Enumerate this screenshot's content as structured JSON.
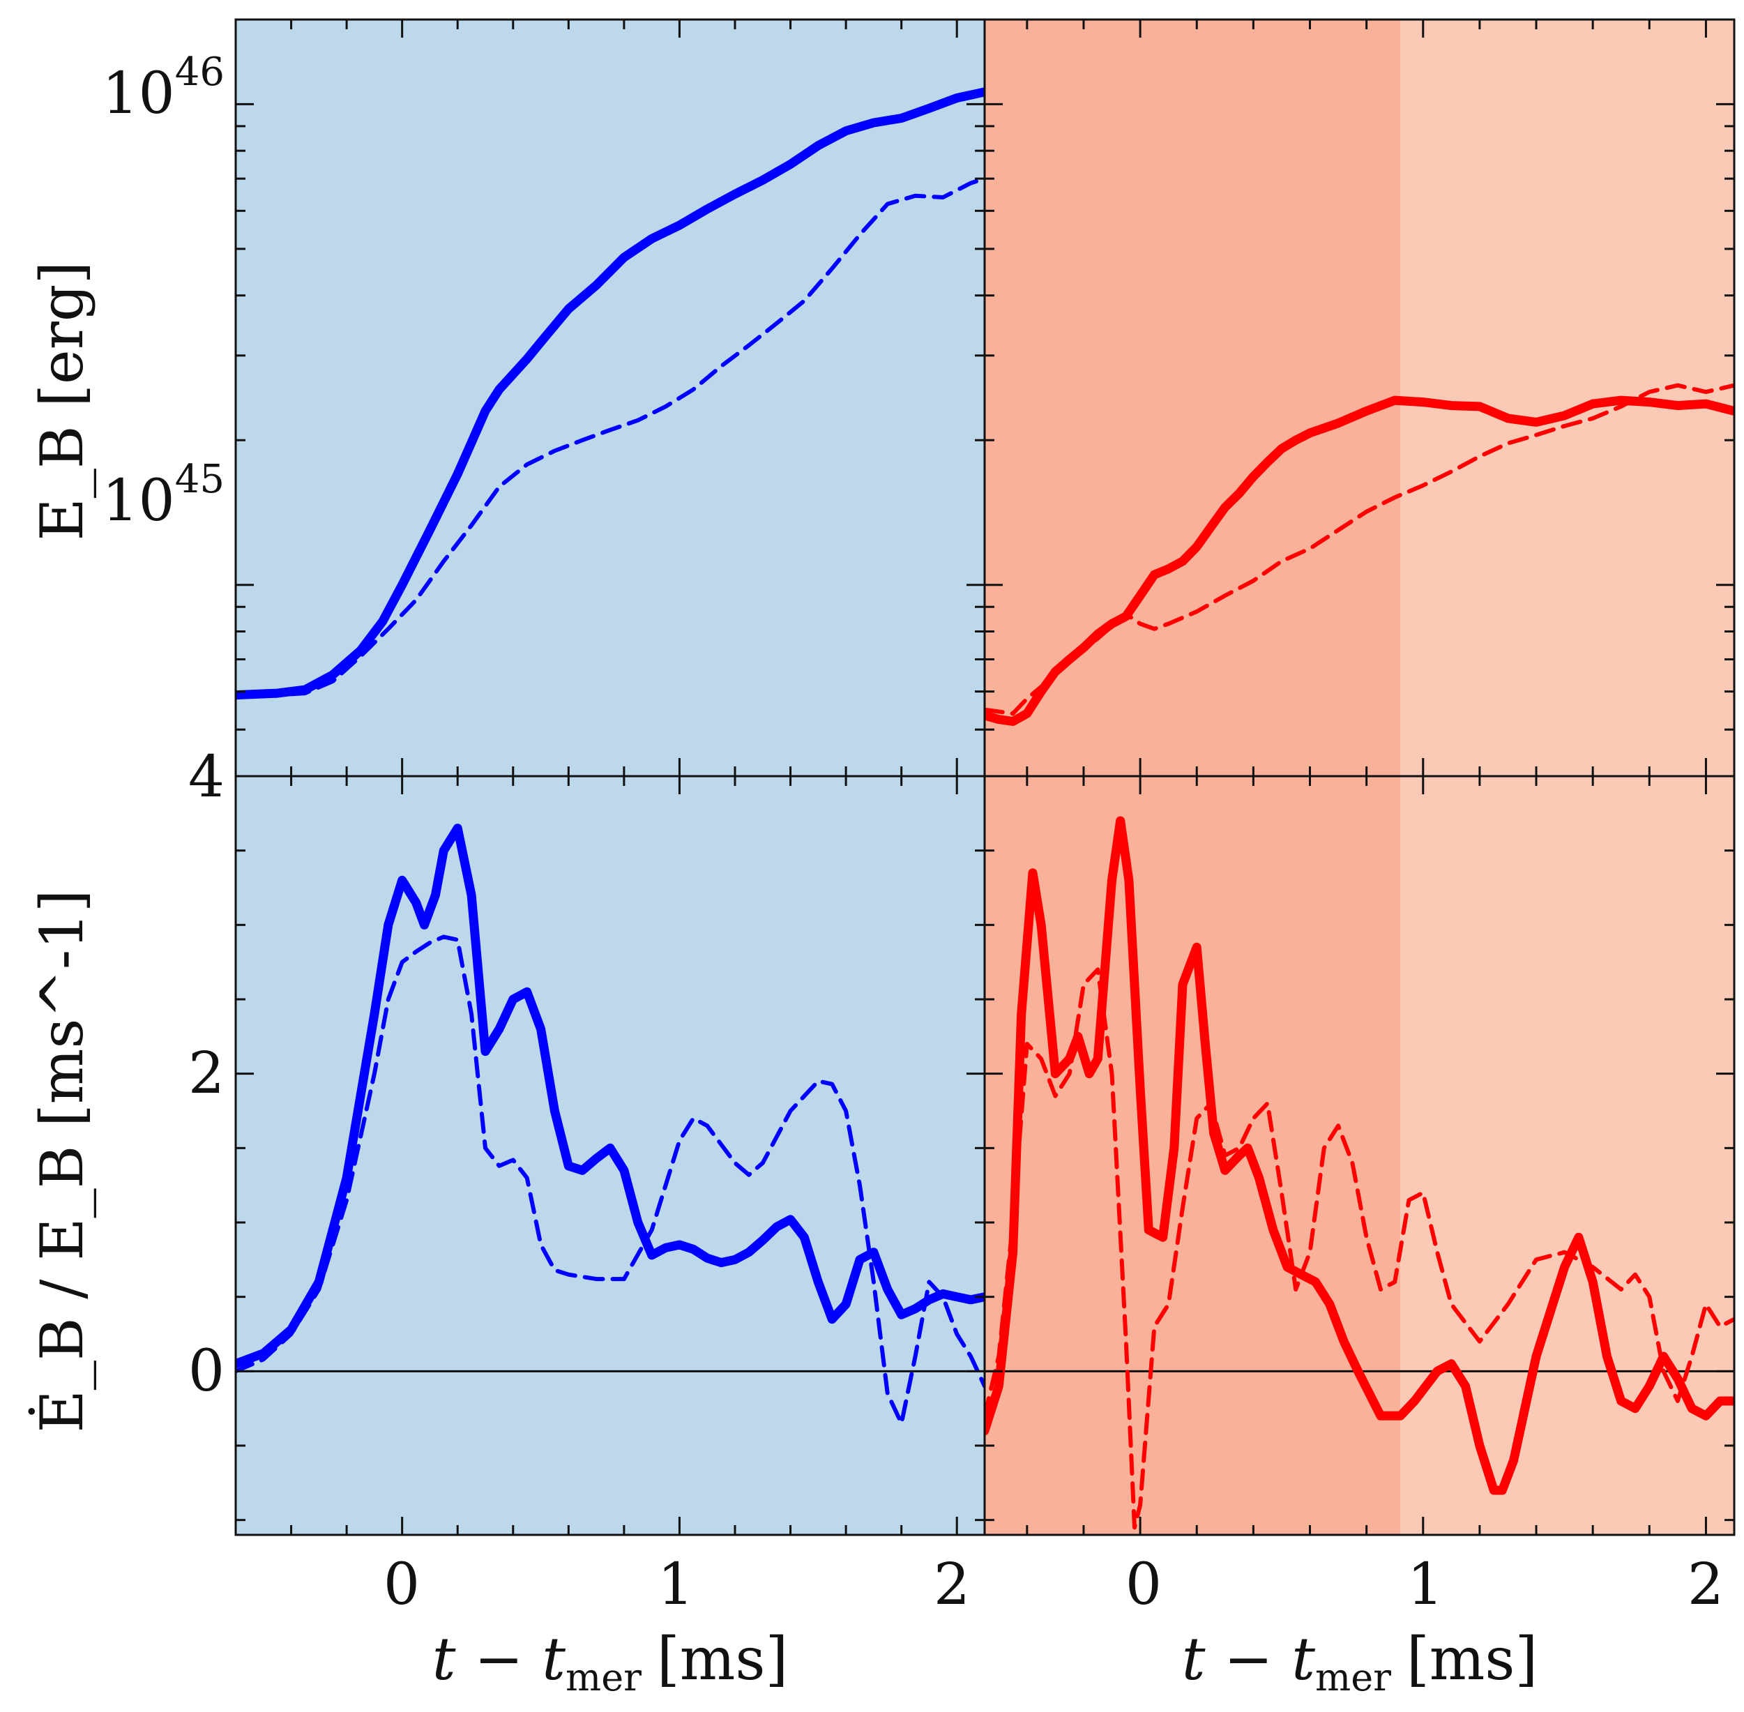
{
  "colors": {
    "blue_bg": "#bdd7eb",
    "red_bg_early": "#f9b199",
    "red_bg_late": "#fbcab6",
    "blue_line": "#0000ff",
    "red_line": "#ff0000"
  },
  "layout_words": {
    "arrangement": "2x2 panels sharing axes; left column blue, right column red",
    "line_styles": "solid (thick) and dashed (thin) per panel",
    "y_scale_top": "log",
    "y_scale_bottom": "linear",
    "grid": "off",
    "legend": "none"
  },
  "axes": {
    "top_ylabel": "E_B [erg]",
    "bottom_ylabel": "Ė_B / E_B [ms^-1]",
    "xlabel": "t − t_mer [ms]",
    "xlabel_base": "t − t",
    "xlabel_sub": "mer",
    "xlabel_units": "[ms]",
    "top_yticks": [
      "10^46",
      "10^45",
      "4"
    ],
    "top_ytick_base": "10",
    "top_ytick_exps": [
      "46",
      "45"
    ],
    "bottom_yticks": [
      "0",
      "2",
      "4"
    ],
    "left_xticks": [
      "0",
      "1",
      "2"
    ],
    "right_xticks": [
      "0",
      "1",
      "2"
    ]
  },
  "chart_data": [
    {
      "type": "line",
      "panel": "top-left",
      "xlim": [
        -0.6,
        2.1
      ],
      "ylim": [
        4e+44,
        1.5e+46
      ],
      "yscale": "log",
      "series": [
        {
          "style": "solid",
          "x": [
            -0.6,
            -0.45,
            -0.35,
            -0.25,
            -0.15,
            -0.07,
            0,
            0.1,
            0.2,
            0.3,
            0.35,
            0.45,
            0.5,
            0.6,
            0.7,
            0.8,
            0.9,
            1.0,
            1.1,
            1.2,
            1.3,
            1.4,
            1.5,
            1.6,
            1.7,
            1.8,
            1.9,
            2.0,
            2.1
          ],
          "y": [
            5.9e+44,
            5.95e+44,
            6.05e+44,
            6.5e+44,
            7.3e+44,
            8.4e+44,
            1e+45,
            1.3e+45,
            1.7e+45,
            2.3e+45,
            2.55e+45,
            2.95e+45,
            3.2e+45,
            3.75e+45,
            4.2e+45,
            4.8e+45,
            5.25e+45,
            5.6e+45,
            6.05e+45,
            6.5e+45,
            6.95e+45,
            7.5e+45,
            8.2e+45,
            8.8e+45,
            9.15e+45,
            9.35e+45,
            9.8e+45,
            1.03e+46,
            1.06e+46
          ]
        },
        {
          "style": "dashed",
          "x": [
            -0.6,
            -0.45,
            -0.35,
            -0.25,
            -0.15,
            -0.05,
            0.05,
            0.15,
            0.25,
            0.35,
            0.45,
            0.55,
            0.65,
            0.75,
            0.85,
            0.95,
            1.05,
            1.15,
            1.25,
            1.35,
            1.45,
            1.55,
            1.65,
            1.75,
            1.85,
            1.95,
            2.05,
            2.1
          ],
          "y": [
            5.85e+44,
            5.9e+44,
            5.95e+44,
            6.3e+44,
            7.1e+44,
            8.1e+44,
            9.3e+44,
            1.12e+45,
            1.33e+45,
            1.6e+45,
            1.78e+45,
            1.9e+45,
            2e+45,
            2.1e+45,
            2.2e+45,
            2.35e+45,
            2.55e+45,
            2.85e+45,
            3.15e+45,
            3.5e+45,
            3.9e+45,
            4.55e+45,
            5.35e+45,
            6.2e+45,
            6.45e+45,
            6.4e+45,
            6.85e+45,
            7e+45
          ]
        }
      ]
    },
    {
      "type": "line",
      "panel": "top-right",
      "xlim": [
        -0.55,
        2.1
      ],
      "ylim": [
        4e+44,
        1.5e+46
      ],
      "yscale": "log",
      "shaded_regions": [
        {
          "x": [
            -0.55,
            0.92
          ],
          "fill": "red_bg_early"
        },
        {
          "x": [
            0.92,
            2.1
          ],
          "fill": "red_bg_late"
        }
      ],
      "series": [
        {
          "style": "solid",
          "x": [
            -0.55,
            -0.5,
            -0.45,
            -0.4,
            -0.35,
            -0.3,
            -0.25,
            -0.2,
            -0.15,
            -0.1,
            -0.05,
            0,
            0.05,
            0.1,
            0.15,
            0.2,
            0.25,
            0.3,
            0.35,
            0.4,
            0.45,
            0.5,
            0.55,
            0.6,
            0.7,
            0.8,
            0.9,
            1.0,
            1.1,
            1.2,
            1.3,
            1.4,
            1.5,
            1.6,
            1.7,
            1.8,
            1.9,
            2.0,
            2.1
          ],
          "y": [
            5.35e+44,
            5.25e+44,
            5.2e+44,
            5.4e+44,
            6e+44,
            6.6e+44,
            7e+44,
            7.4e+44,
            7.9e+44,
            8.3e+44,
            8.6e+44,
            9.5e+44,
            1.05e+45,
            1.08e+45,
            1.12e+45,
            1.2e+45,
            1.32e+45,
            1.45e+45,
            1.55e+45,
            1.68e+45,
            1.8e+45,
            1.92e+45,
            2e+45,
            2.07e+45,
            2.17e+45,
            2.3e+45,
            2.42e+45,
            2.4e+45,
            2.36e+45,
            2.35e+45,
            2.22e+45,
            2.18e+45,
            2.25e+45,
            2.38e+45,
            2.42e+45,
            2.4e+45,
            2.36e+45,
            2.38e+45,
            2.3e+45
          ]
        },
        {
          "style": "dashed",
          "x": [
            -0.55,
            -0.45,
            -0.4,
            -0.3,
            -0.2,
            -0.1,
            -0.05,
            0,
            0.05,
            0.1,
            0.2,
            0.3,
            0.4,
            0.5,
            0.6,
            0.7,
            0.8,
            0.9,
            1.0,
            1.1,
            1.2,
            1.3,
            1.4,
            1.5,
            1.6,
            1.7,
            1.8,
            1.9,
            2.0,
            2.1
          ],
          "y": [
            5.5e+44,
            5.4e+44,
            5.8e+44,
            6.5e+44,
            7.3e+44,
            8.2e+44,
            8.7e+44,
            8.3e+44,
            8.1e+44,
            8.3e+44,
            8.8e+44,
            9.5e+44,
            1.02e+45,
            1.12e+45,
            1.19e+45,
            1.3e+45,
            1.42e+45,
            1.52e+45,
            1.61e+45,
            1.72e+45,
            1.85e+45,
            1.97e+45,
            2.05e+45,
            2.14e+45,
            2.22e+45,
            2.35e+45,
            2.52e+45,
            2.6e+45,
            2.52e+45,
            2.6e+45
          ]
        }
      ]
    },
    {
      "type": "line",
      "panel": "bottom-left",
      "xlim": [
        -0.6,
        2.1
      ],
      "ylim": [
        -1.1,
        4
      ],
      "yscale": "linear",
      "series": [
        {
          "style": "solid",
          "x": [
            -0.6,
            -0.5,
            -0.4,
            -0.3,
            -0.2,
            -0.1,
            -0.05,
            0,
            0.05,
            0.08,
            0.12,
            0.15,
            0.2,
            0.25,
            0.3,
            0.35,
            0.4,
            0.45,
            0.5,
            0.55,
            0.6,
            0.65,
            0.7,
            0.75,
            0.8,
            0.85,
            0.9,
            0.95,
            1.0,
            1.05,
            1.1,
            1.15,
            1.2,
            1.25,
            1.3,
            1.35,
            1.4,
            1.45,
            1.5,
            1.55,
            1.6,
            1.65,
            1.7,
            1.75,
            1.8,
            1.85,
            1.9,
            1.95,
            2.0,
            2.05,
            2.1
          ],
          "y": [
            0.05,
            0.12,
            0.28,
            0.6,
            1.3,
            2.4,
            3.0,
            3.3,
            3.15,
            3.0,
            3.2,
            3.5,
            3.65,
            3.2,
            2.15,
            2.3,
            2.5,
            2.55,
            2.3,
            1.75,
            1.38,
            1.35,
            1.43,
            1.5,
            1.35,
            1.0,
            0.78,
            0.83,
            0.85,
            0.82,
            0.76,
            0.73,
            0.75,
            0.8,
            0.88,
            0.97,
            1.02,
            0.9,
            0.6,
            0.35,
            0.45,
            0.75,
            0.8,
            0.55,
            0.38,
            0.42,
            0.48,
            0.52,
            0.5,
            0.48,
            0.5
          ]
        },
        {
          "style": "dashed",
          "x": [
            -0.6,
            -0.5,
            -0.4,
            -0.3,
            -0.2,
            -0.1,
            -0.05,
            0,
            0.05,
            0.1,
            0.15,
            0.2,
            0.25,
            0.3,
            0.35,
            0.4,
            0.45,
            0.5,
            0.55,
            0.6,
            0.7,
            0.8,
            0.9,
            1.0,
            1.05,
            1.1,
            1.2,
            1.25,
            1.3,
            1.4,
            1.5,
            1.55,
            1.6,
            1.65,
            1.7,
            1.75,
            1.8,
            1.85,
            1.9,
            1.95,
            2.0,
            2.05,
            2.1
          ],
          "y": [
            0.0,
            0.08,
            0.25,
            0.55,
            1.15,
            2.0,
            2.5,
            2.75,
            2.82,
            2.88,
            2.92,
            2.9,
            2.4,
            1.5,
            1.38,
            1.42,
            1.3,
            0.85,
            0.68,
            0.65,
            0.62,
            0.62,
            0.95,
            1.55,
            1.7,
            1.65,
            1.4,
            1.32,
            1.4,
            1.75,
            1.95,
            1.93,
            1.75,
            1.25,
            0.6,
            -0.15,
            -0.35,
            0.1,
            0.6,
            0.5,
            0.25,
            0.1,
            -0.1
          ]
        }
      ]
    },
    {
      "type": "line",
      "panel": "bottom-right",
      "xlim": [
        -0.55,
        2.1
      ],
      "ylim": [
        -1.1,
        4
      ],
      "yscale": "linear",
      "shaded_regions": [
        {
          "x": [
            -0.55,
            0.92
          ],
          "fill": "red_bg_early"
        },
        {
          "x": [
            0.92,
            2.1
          ],
          "fill": "red_bg_late"
        }
      ],
      "series": [
        {
          "style": "solid",
          "x": [
            -0.55,
            -0.5,
            -0.45,
            -0.42,
            -0.38,
            -0.35,
            -0.3,
            -0.25,
            -0.22,
            -0.18,
            -0.15,
            -0.1,
            -0.07,
            -0.04,
            0,
            0.03,
            0.08,
            0.12,
            0.15,
            0.2,
            0.23,
            0.26,
            0.3,
            0.35,
            0.38,
            0.42,
            0.47,
            0.52,
            0.57,
            0.62,
            0.67,
            0.72,
            0.77,
            0.85,
            0.92,
            0.97,
            1.05,
            1.1,
            1.15,
            1.2,
            1.25,
            1.28,
            1.32,
            1.4,
            1.5,
            1.55,
            1.6,
            1.65,
            1.7,
            1.75,
            1.8,
            1.85,
            1.9,
            1.95,
            2.0,
            2.05,
            2.1
          ],
          "y": [
            -0.4,
            -0.1,
            0.8,
            2.4,
            3.35,
            3.0,
            2.0,
            2.1,
            2.25,
            2.0,
            2.1,
            3.3,
            3.7,
            3.3,
            1.9,
            0.95,
            0.9,
            1.5,
            2.6,
            2.85,
            2.2,
            1.6,
            1.35,
            1.45,
            1.5,
            1.3,
            0.95,
            0.7,
            0.65,
            0.6,
            0.45,
            0.2,
            0.0,
            -0.3,
            -0.3,
            -0.2,
            0.0,
            0.05,
            -0.1,
            -0.5,
            -0.8,
            -0.8,
            -0.6,
            0.1,
            0.7,
            0.9,
            0.6,
            0.1,
            -0.2,
            -0.25,
            -0.1,
            0.1,
            -0.05,
            -0.25,
            -0.3,
            -0.2,
            -0.2
          ]
        },
        {
          "style": "dashed",
          "x": [
            -0.55,
            -0.5,
            -0.45,
            -0.4,
            -0.35,
            -0.3,
            -0.25,
            -0.2,
            -0.15,
            -0.1,
            -0.05,
            -0.02,
            0,
            0.05,
            0.1,
            0.15,
            0.2,
            0.25,
            0.3,
            0.35,
            0.4,
            0.45,
            0.5,
            0.55,
            0.6,
            0.65,
            0.7,
            0.75,
            0.8,
            0.85,
            0.9,
            0.95,
            1.0,
            1.05,
            1.1,
            1.2,
            1.3,
            1.4,
            1.5,
            1.6,
            1.7,
            1.75,
            1.8,
            1.85,
            1.9,
            1.95,
            2.0,
            2.05,
            2.1
          ],
          "y": [
            -0.3,
            0.1,
            1.0,
            2.2,
            2.1,
            1.85,
            2.0,
            2.6,
            2.7,
            2.0,
            0.2,
            -1.05,
            -0.9,
            0.3,
            0.45,
            1.1,
            1.7,
            1.8,
            1.45,
            1.5,
            1.7,
            1.8,
            1.2,
            0.55,
            0.8,
            1.5,
            1.65,
            1.4,
            0.9,
            0.55,
            0.6,
            1.15,
            1.2,
            0.8,
            0.45,
            0.2,
            0.45,
            0.75,
            0.8,
            0.7,
            0.55,
            0.65,
            0.5,
            0.0,
            -0.2,
            0.1,
            0.45,
            0.3,
            0.35
          ]
        }
      ]
    }
  ]
}
